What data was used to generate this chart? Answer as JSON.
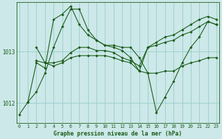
{
  "xlabel": "Graphe pression niveau de la mer (hPa)",
  "bg_color": "#cce8e8",
  "plot_bg_color": "#cce8e8",
  "grid_color": "#99cccc",
  "line_color": "#1a5c1a",
  "marker_color": "#1a5c1a",
  "yticks": [
    1012,
    1013
  ],
  "xticks": [
    0,
    1,
    2,
    3,
    4,
    5,
    6,
    7,
    8,
    9,
    10,
    11,
    12,
    13,
    14,
    15,
    16,
    17,
    18,
    19,
    20,
    21,
    22,
    23
  ],
  "ylim": [
    1011.62,
    1013.95
  ],
  "xlim": [
    -0.3,
    23.3
  ],
  "lines": [
    [
      1011.78,
      1012.02,
      1012.22,
      1012.58,
      1013.08,
      1013.48,
      1013.82,
      1013.82,
      1013.42,
      1013.22,
      1013.12,
      1013.08,
      1013.02,
      1012.88,
      1012.62,
      1013.08,
      1013.18,
      1013.28,
      1013.32,
      1013.42,
      1013.52,
      1013.62,
      1013.68,
      1013.62
    ],
    [
      null,
      null,
      1013.08,
      1012.78,
      1012.72,
      1012.78,
      1012.88,
      1012.92,
      1012.92,
      1012.92,
      1012.92,
      1012.88,
      1012.82,
      1012.78,
      1012.62,
      1012.58,
      1012.58,
      1012.62,
      1012.62,
      1012.72,
      1012.78,
      1012.82,
      1012.88,
      1012.88
    ],
    [
      null,
      null,
      1012.82,
      1012.78,
      1012.78,
      1012.82,
      1012.98,
      1013.08,
      1013.08,
      1013.02,
      1013.02,
      1012.98,
      1012.88,
      1012.82,
      1012.72,
      1013.08,
      1013.12,
      1013.18,
      1013.22,
      1013.32,
      1013.38,
      1013.48,
      1013.58,
      1013.52
    ],
    [
      null,
      1012.02,
      1012.78,
      1012.68,
      1013.62,
      1013.72,
      1013.88,
      1013.52,
      1013.32,
      1013.22,
      1013.12,
      1013.12,
      1013.08,
      1013.08,
      1012.88,
      1012.58,
      1011.82,
      1012.12,
      1012.42,
      1012.78,
      1013.08,
      1013.28,
      1013.58,
      1013.52
    ]
  ]
}
